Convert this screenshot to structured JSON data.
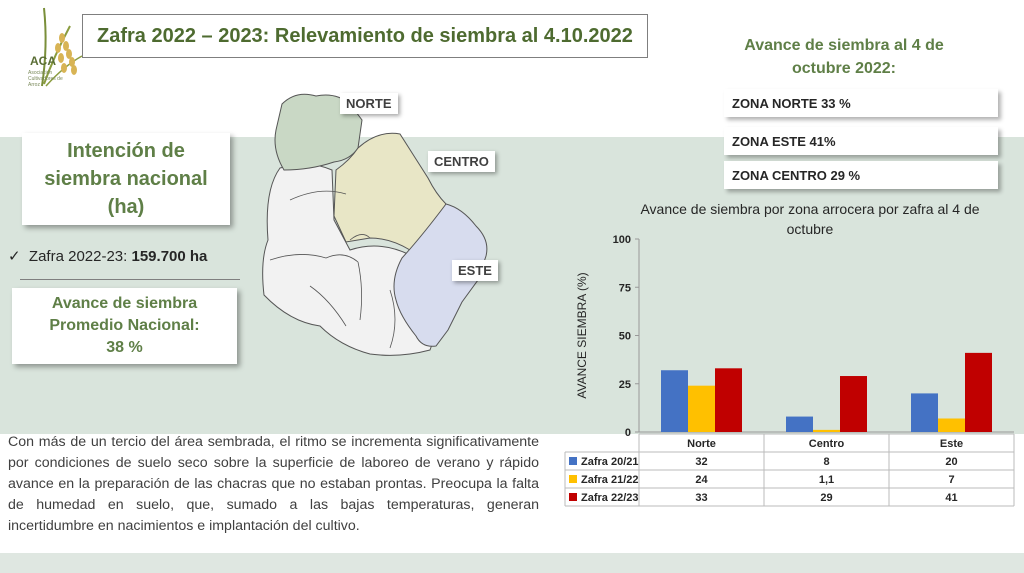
{
  "logo": {
    "text": "ACA",
    "sub": "Asociación Cultivadores de Arroz"
  },
  "title": "Zafra 2022 – 2023: Relevamiento de siembra al 4.10.2022",
  "intencion": {
    "lines": [
      "Intención de",
      "siembra nacional",
      "(ha)"
    ]
  },
  "zafra": {
    "check": "✓",
    "label": "Zafra 2022-23:",
    "value": "159.700 ha"
  },
  "avance_promedio": {
    "lines": [
      "Avance de siembra",
      "Promedio Nacional:",
      "38 %"
    ]
  },
  "map": {
    "labels": {
      "norte": "NORTE",
      "centro": "CENTRO",
      "este": "ESTE"
    },
    "colors": {
      "norte": "#c9d8c5",
      "centro": "#e8e6c6",
      "este": "#d7dcee",
      "other": "#f2f2f2"
    }
  },
  "avance_title": "Avance de siembra al 4 de octubre 2022:",
  "zonas": {
    "norte": "ZONA NORTE  33 %",
    "este": "ZONA ESTE  41%",
    "centro": "ZONA CENTRO 29 %"
  },
  "paragraph": "Con más de un tercio del área sembrada, el ritmo se incrementa significativamente por condiciones de suelo seco sobre la superficie de laboreo de verano y rápido avance en la preparación de las chacras que no estaban prontas. Preocupa la falta de humedad en suelo, que, sumado a las bajas temperaturas, generan incertidumbre en nacimientos e implantación del cultivo.",
  "chart_data": {
    "type": "bar",
    "title": "Avance de siembra por zona arrocera por zafra al 4 de octubre",
    "ylabel": "AVANCE SIEMBRA (%)",
    "ylim": [
      0,
      100
    ],
    "yticks": [
      0,
      25,
      50,
      75,
      100
    ],
    "categories": [
      "Norte",
      "Centro",
      "Este"
    ],
    "series": [
      {
        "name": "Zafra 20/21",
        "values": [
          32,
          8,
          20
        ],
        "labels": [
          "32",
          "8",
          "20"
        ],
        "color": "#4472c4"
      },
      {
        "name": "Zafra 21/22",
        "values": [
          24,
          1.1,
          7
        ],
        "labels": [
          "24",
          "1,1",
          "7"
        ],
        "color": "#ffc000"
      },
      {
        "name": "Zafra 22/23",
        "values": [
          33,
          29,
          41
        ],
        "labels": [
          "33",
          "29",
          "41"
        ],
        "color": "#c00000"
      }
    ]
  }
}
